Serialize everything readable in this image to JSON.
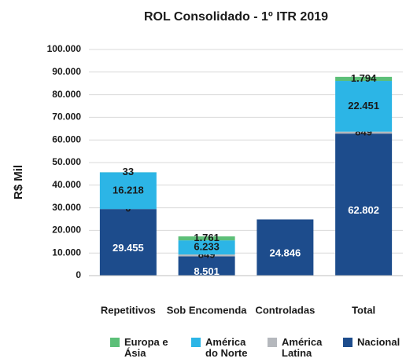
{
  "chart_data": {
    "type": "bar",
    "stacked": true,
    "title": "ROL Consolidado - 1º ITR 2019",
    "y_label": "R$ Mil",
    "categories": [
      "Repetitivos",
      "Sob Encomenda",
      "Controladas",
      "Total"
    ],
    "series": [
      {
        "name": "Nacional",
        "color": "#1d4c8c",
        "values": [
          29455,
          8501,
          24846,
          62802
        ],
        "value_labels": [
          "29.455",
          "8.501",
          "24.846",
          "62.802"
        ]
      },
      {
        "name": "América Latina",
        "color": "#b5b8bd",
        "values": [
          0,
          849,
          null,
          849
        ],
        "value_labels": [
          "0",
          "849",
          null,
          "849"
        ]
      },
      {
        "name": "América do Norte",
        "color": "#2cb5e6",
        "values": [
          16218,
          6233,
          null,
          22451
        ],
        "value_labels": [
          "16.218",
          "6.233",
          null,
          "22.451"
        ]
      },
      {
        "name": "Europa e Ásia",
        "color": "#5cbf78",
        "values": [
          33,
          1761,
          null,
          1794
        ],
        "value_labels": [
          "33",
          "1.761",
          null,
          "1.794"
        ]
      }
    ],
    "ylim": [
      0,
      100000
    ],
    "yticks": [
      0,
      {
        "value": 10000,
        "label": "10.000"
      },
      {
        "value": 20000,
        "label": "20.000"
      },
      {
        "value": 30000,
        "label": "30.000"
      },
      {
        "value": 40000,
        "label": "40.000"
      },
      {
        "value": 50000,
        "label": "50.000"
      },
      {
        "value": 60000,
        "label": "60.000"
      },
      {
        "value": 70000,
        "label": "70.000"
      },
      {
        "value": 80000,
        "label": "80.000"
      },
      {
        "value": 90000,
        "label": "90.000"
      },
      {
        "value": 100000,
        "label": "100.000"
      }
    ],
    "grid": true,
    "legend": "bottom"
  }
}
